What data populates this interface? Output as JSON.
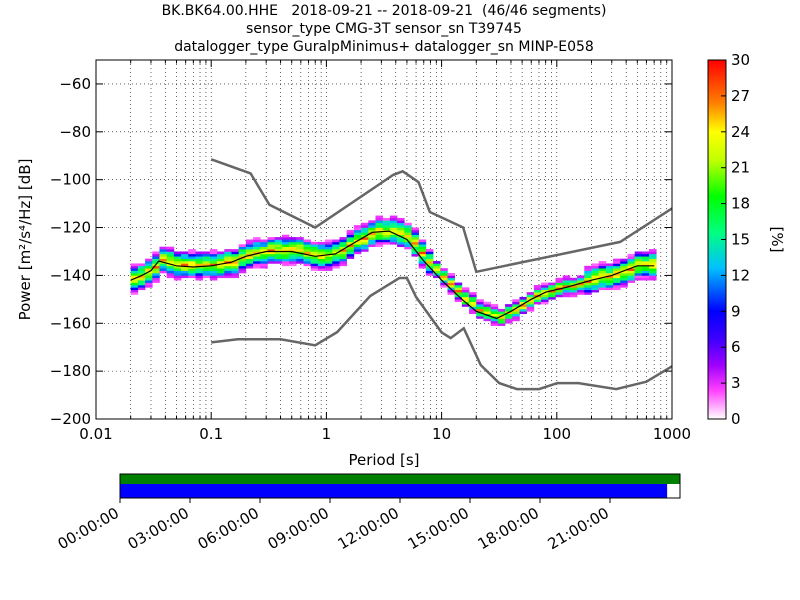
{
  "title": {
    "line1": "BK.BK64.00.HHE   2018-09-21 -- 2018-09-21  (46/46 segments)",
    "line2": "sensor_type CMG-3T sensor_sn T39745",
    "line3": "datalogger_type GuralpMinimus+ datalogger_sn MINP-E058"
  },
  "chart_data": [
    {
      "type": "heatmap",
      "xlabel": "Period [s]",
      "ylabel": "Power [m²/s⁴/Hz] [dB]",
      "xscale": "log",
      "xlim": [
        0.01,
        1000
      ],
      "ylim": [
        -200,
        -50
      ],
      "xticks": [
        0.01,
        0.1,
        1,
        10,
        100,
        1000
      ],
      "xtick_labels": [
        "0.01",
        "0.1",
        "1",
        "10",
        "100",
        "1000"
      ],
      "yticks": [
        -200,
        -180,
        -160,
        -140,
        -120,
        -100,
        -80,
        -60
      ],
      "ytick_labels": [
        "−200",
        "−180",
        "−160",
        "−140",
        "−120",
        "−100",
        "−80",
        "−60"
      ],
      "grid": true,
      "colorbar": {
        "label": "[%]",
        "range": [
          0,
          30
        ],
        "ticks": [
          "0",
          "3",
          "6",
          "9",
          "12",
          "15",
          "18",
          "21",
          "24",
          "27",
          "30"
        ]
      },
      "new_high_noise_model": {
        "x": [
          0.1,
          0.22,
          0.32,
          0.8,
          3.8,
          4.6,
          6.3,
          7.9,
          15.4,
          20,
          354.8,
          1000
        ],
        "y": [
          -91.5,
          -97.4,
          -110.5,
          -120,
          -98,
          -96.5,
          -101,
          -113.5,
          -120,
          -138.5,
          -126,
          -112
        ]
      },
      "new_low_noise_model": {
        "x": [
          0.1,
          0.17,
          0.4,
          0.8,
          1.24,
          2.4,
          4.3,
          5,
          6,
          10,
          12,
          15.6,
          21.9,
          31.6,
          45,
          70,
          101,
          154,
          328,
          600,
          1000
        ],
        "y": [
          -168,
          -166.7,
          -166.7,
          -169.2,
          -163.7,
          -148.6,
          -141.1,
          -141.1,
          -149,
          -163.8,
          -166.2,
          -162.1,
          -177.5,
          -185,
          -187.5,
          -187.5,
          -185,
          -185,
          -187.5,
          -184.4,
          -178
        ]
      },
      "median_psd": {
        "x": [
          0.02,
          0.025,
          0.03,
          0.035,
          0.05,
          0.07,
          0.1,
          0.15,
          0.2,
          0.3,
          0.5,
          0.8,
          1.2,
          1.8,
          2.5,
          3.5,
          5,
          7,
          10,
          15,
          20,
          30,
          40,
          60,
          80,
          120,
          200,
          300,
          500,
          700
        ],
        "y": [
          -142,
          -140,
          -138,
          -134,
          -136,
          -136.5,
          -136,
          -134.5,
          -132,
          -130,
          -130,
          -132,
          -131,
          -126,
          -122,
          -121.5,
          -125,
          -134,
          -142,
          -150,
          -155,
          -158,
          -155,
          -150,
          -147,
          -145,
          -142,
          -140,
          -136,
          -136
        ]
      }
    },
    {
      "type": "timeline",
      "ticks": [
        "00:00:00",
        "03:00:00",
        "06:00:00",
        "09:00:00",
        "12:00:00",
        "15:00:00",
        "18:00:00",
        "21:00:00"
      ],
      "coverage_fraction": 0.977,
      "colors": {
        "data": "#008000",
        "psd": "#0000ff"
      }
    }
  ]
}
